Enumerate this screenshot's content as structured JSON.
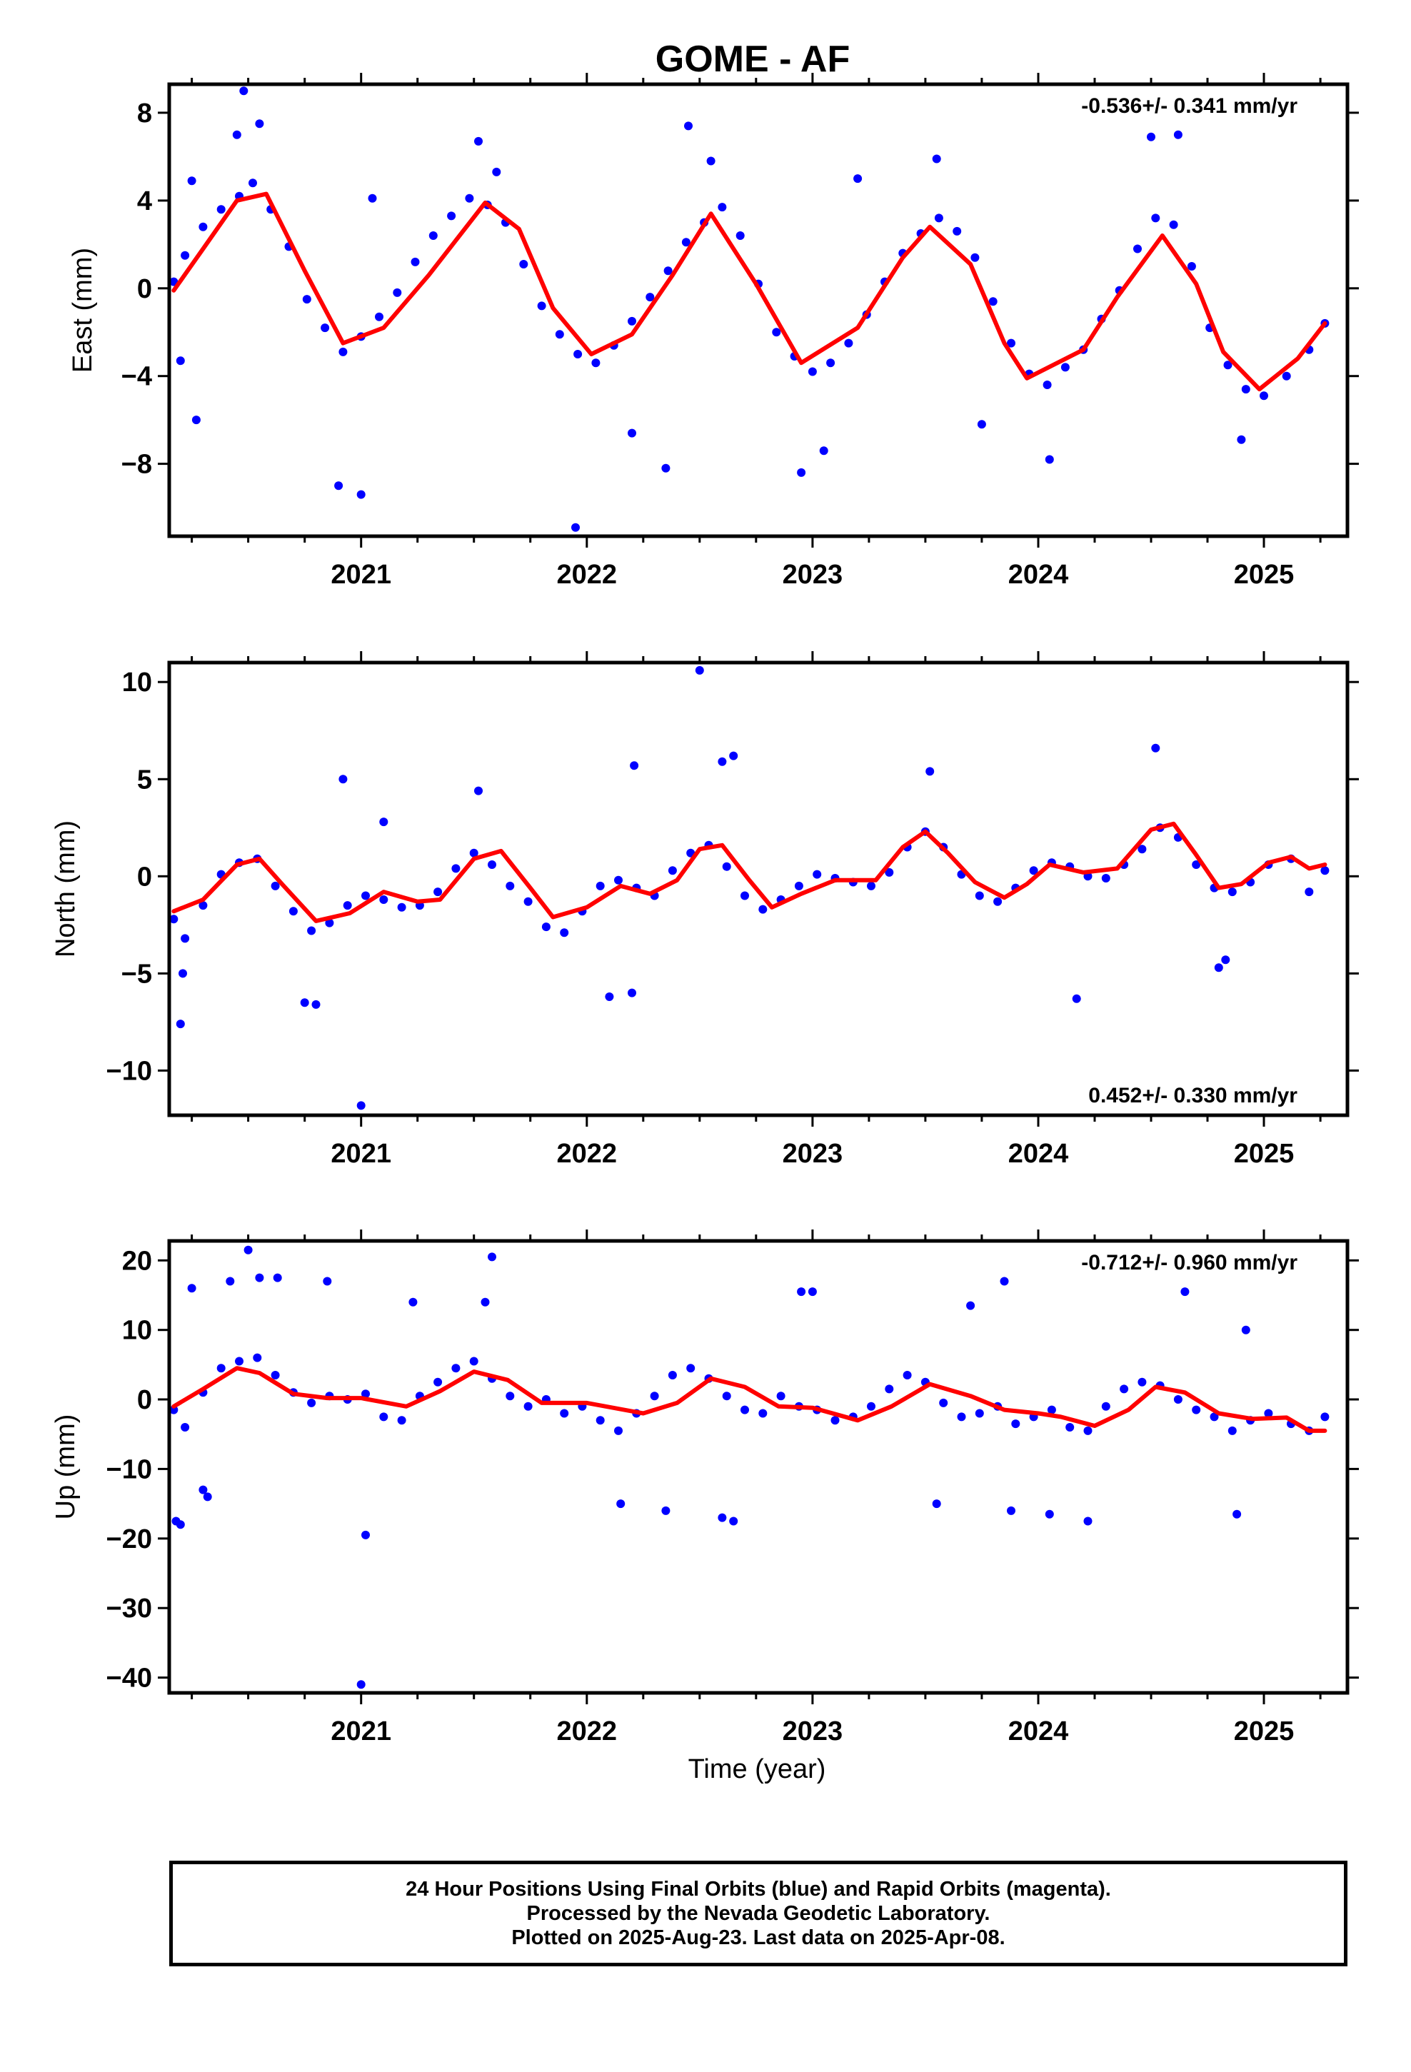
{
  "title": "GOME - AF",
  "xlabel": "Time (year)",
  "colors": {
    "points": "#0000ff",
    "fit": "#ff0000",
    "frame": "#000000"
  },
  "footer": {
    "line1": "24 Hour Positions Using Final Orbits (blue) and Rapid Orbits (magenta).",
    "line2": "Processed by the Nevada Geodetic Laboratory.",
    "line3": "Plotted on 2025-Aug-23. Last data on 2025-Apr-08."
  },
  "chart_data": [
    {
      "type": "scatter",
      "component": "east",
      "title": "GOME - AF",
      "xlabel": "",
      "ylabel": "East (mm)",
      "rate_text": "-0.536+/- 0.341 mm/yr",
      "rate_position": "top-right",
      "xlim": [
        2020.15,
        2025.37
      ],
      "ylim": [
        -11.3,
        9.3
      ],
      "x_ticks": [
        2021,
        2022,
        2023,
        2024,
        2025
      ],
      "y_ticks": [
        -8,
        -4,
        0,
        4,
        8
      ],
      "y_tick_labels": [
        "−8",
        "−4",
        "0",
        "4",
        "8"
      ],
      "grid": false,
      "series": [
        {
          "kind": "points",
          "x": [
            2020.17,
            2020.22,
            2020.3,
            2020.38,
            2020.46,
            2020.52,
            2020.6,
            2020.68,
            2020.76,
            2020.84,
            2020.92,
            2021.0,
            2021.08,
            2021.16,
            2021.24,
            2021.32,
            2021.4,
            2021.48,
            2021.56,
            2021.64,
            2021.72,
            2021.8,
            2021.88,
            2021.96,
            2022.04,
            2022.12,
            2022.2,
            2022.28,
            2022.36,
            2022.44,
            2022.52,
            2022.6,
            2022.68,
            2022.76,
            2022.84,
            2022.92,
            2023.0,
            2023.08,
            2023.16,
            2023.24,
            2023.32,
            2023.4,
            2023.48,
            2023.56,
            2023.64,
            2023.72,
            2023.8,
            2023.88,
            2023.96,
            2024.04,
            2024.12,
            2024.2,
            2024.28,
            2024.36,
            2024.44,
            2024.52,
            2024.6,
            2024.68,
            2024.76,
            2024.84,
            2024.92,
            2025.0,
            2025.1,
            2025.2,
            2025.27,
            2020.2,
            2020.27,
            2020.48,
            2020.55,
            2020.9,
            2021.0,
            2021.52,
            2021.6,
            2022.45,
            2022.55,
            2022.35,
            2022.95,
            2023.05,
            2023.55,
            2023.75,
            2024.5,
            2024.62,
            2024.9,
            2024.05,
            2023.2,
            2020.25,
            2021.95,
            2022.2,
            2020.45,
            2021.05
          ],
          "y": [
            0.3,
            1.5,
            2.8,
            3.6,
            4.2,
            4.8,
            3.6,
            1.9,
            -0.5,
            -1.8,
            -2.9,
            -2.2,
            -1.3,
            -0.2,
            1.2,
            2.4,
            3.3,
            4.1,
            3.8,
            3.0,
            1.1,
            -0.8,
            -2.1,
            -3.0,
            -3.4,
            -2.6,
            -1.5,
            -0.4,
            0.8,
            2.1,
            3.0,
            3.7,
            2.4,
            0.2,
            -2.0,
            -3.1,
            -3.8,
            -3.4,
            -2.5,
            -1.2,
            0.3,
            1.6,
            2.5,
            3.2,
            2.6,
            1.4,
            -0.6,
            -2.5,
            -3.9,
            -4.4,
            -3.6,
            -2.8,
            -1.4,
            -0.1,
            1.8,
            3.2,
            2.9,
            1.0,
            -1.8,
            -3.5,
            -4.6,
            -4.9,
            -4.0,
            -2.8,
            -1.6,
            -3.3,
            -6.0,
            9.0,
            7.5,
            -9.0,
            -9.4,
            6.7,
            5.3,
            7.4,
            5.8,
            -8.2,
            -8.4,
            -7.4,
            5.9,
            -6.2,
            6.9,
            7.0,
            -6.9,
            -7.8,
            5.0,
            4.9,
            -10.9,
            -6.6,
            7.0,
            4.1
          ]
        },
        {
          "kind": "fit",
          "x": [
            2020.17,
            2020.3,
            2020.45,
            2020.58,
            2020.75,
            2020.92,
            2021.1,
            2021.3,
            2021.55,
            2021.7,
            2021.85,
            2022.02,
            2022.2,
            2022.38,
            2022.55,
            2022.75,
            2022.95,
            2023.2,
            2023.4,
            2023.52,
            2023.7,
            2023.85,
            2023.95,
            2024.2,
            2024.35,
            2024.55,
            2024.7,
            2024.82,
            2024.98,
            2025.15,
            2025.27
          ],
          "y": [
            -0.1,
            1.8,
            4.0,
            4.3,
            0.8,
            -2.5,
            -1.8,
            0.6,
            3.9,
            2.7,
            -0.9,
            -3.0,
            -2.1,
            0.6,
            3.4,
            0.2,
            -3.4,
            -1.8,
            1.4,
            2.8,
            1.1,
            -2.5,
            -4.1,
            -2.8,
            -0.4,
            2.4,
            0.2,
            -2.9,
            -4.6,
            -3.2,
            -1.6
          ]
        }
      ]
    },
    {
      "type": "scatter",
      "component": "north",
      "xlabel": "",
      "ylabel": "North (mm)",
      "rate_text": "0.452+/- 0.330 mm/yr",
      "rate_position": "bottom-right",
      "xlim": [
        2020.15,
        2025.37
      ],
      "ylim": [
        -12.3,
        11.0
      ],
      "x_ticks": [
        2021,
        2022,
        2023,
        2024,
        2025
      ],
      "y_ticks": [
        -10,
        -5,
        0,
        5,
        10
      ],
      "y_tick_labels": [
        "−10",
        "−5",
        "0",
        "5",
        "10"
      ],
      "grid": false,
      "series": [
        {
          "kind": "points",
          "x": [
            2020.17,
            2020.22,
            2020.3,
            2020.38,
            2020.46,
            2020.54,
            2020.62,
            2020.7,
            2020.78,
            2020.86,
            2020.94,
            2021.02,
            2021.1,
            2021.18,
            2021.26,
            2021.34,
            2021.42,
            2021.5,
            2021.58,
            2021.66,
            2021.74,
            2021.82,
            2021.9,
            2021.98,
            2022.06,
            2022.14,
            2022.22,
            2022.3,
            2022.38,
            2022.46,
            2022.54,
            2022.62,
            2022.7,
            2022.78,
            2022.86,
            2022.94,
            2023.02,
            2023.1,
            2023.18,
            2023.26,
            2023.34,
            2023.42,
            2023.5,
            2023.58,
            2023.66,
            2023.74,
            2023.82,
            2023.9,
            2023.98,
            2024.06,
            2024.14,
            2024.22,
            2024.3,
            2024.38,
            2024.46,
            2024.54,
            2024.62,
            2024.7,
            2024.78,
            2024.86,
            2024.94,
            2025.02,
            2025.12,
            2025.2,
            2025.27,
            2020.2,
            2020.21,
            2020.75,
            2020.8,
            2020.92,
            2021.0,
            2021.1,
            2022.5,
            2022.65,
            2023.52,
            2024.17,
            2024.52,
            2022.21,
            2022.1,
            2021.52,
            2022.2,
            2022.6,
            2024.8,
            2024.83
          ],
          "y": [
            -2.2,
            -3.2,
            -1.5,
            0.1,
            0.7,
            0.9,
            -0.5,
            -1.8,
            -2.8,
            -2.4,
            -1.5,
            -1.0,
            -1.2,
            -1.6,
            -1.5,
            -0.8,
            0.4,
            1.2,
            0.6,
            -0.5,
            -1.3,
            -2.6,
            -2.9,
            -1.8,
            -0.5,
            -0.2,
            -0.6,
            -1.0,
            0.3,
            1.2,
            1.6,
            0.5,
            -1.0,
            -1.7,
            -1.2,
            -0.5,
            0.1,
            -0.1,
            -0.3,
            -0.5,
            0.2,
            1.5,
            2.3,
            1.5,
            0.1,
            -1.0,
            -1.3,
            -0.6,
            0.3,
            0.7,
            0.5,
            0.0,
            -0.1,
            0.6,
            1.4,
            2.5,
            2.0,
            0.6,
            -0.6,
            -0.8,
            -0.3,
            0.6,
            0.9,
            -0.8,
            0.3,
            -7.6,
            -5.0,
            -6.5,
            -6.6,
            5.0,
            -11.8,
            2.8,
            10.6,
            6.2,
            5.4,
            -6.3,
            6.6,
            5.7,
            -6.2,
            4.4,
            -6.0,
            5.9,
            -4.7,
            -4.3
          ]
        },
        {
          "kind": "fit",
          "x": [
            2020.17,
            2020.3,
            2020.45,
            2020.55,
            2020.65,
            2020.8,
            2020.95,
            2021.1,
            2021.25,
            2021.35,
            2021.5,
            2021.62,
            2021.75,
            2021.85,
            2022.0,
            2022.15,
            2022.28,
            2022.4,
            2022.5,
            2022.6,
            2022.72,
            2022.82,
            2022.95,
            2023.1,
            2023.28,
            2023.4,
            2023.5,
            2023.6,
            2023.72,
            2023.85,
            2023.95,
            2024.05,
            2024.2,
            2024.35,
            2024.5,
            2024.6,
            2024.7,
            2024.8,
            2024.9,
            2025.02,
            2025.12,
            2025.2,
            2025.27
          ],
          "y": [
            -1.8,
            -1.2,
            0.6,
            0.9,
            -0.4,
            -2.3,
            -1.9,
            -0.8,
            -1.3,
            -1.2,
            0.9,
            1.3,
            -0.6,
            -2.1,
            -1.6,
            -0.5,
            -0.9,
            -0.2,
            1.4,
            1.6,
            -0.2,
            -1.6,
            -0.9,
            -0.2,
            -0.2,
            1.5,
            2.3,
            1.2,
            -0.3,
            -1.1,
            -0.4,
            0.6,
            0.2,
            0.4,
            2.4,
            2.7,
            1.1,
            -0.6,
            -0.4,
            0.7,
            1.0,
            0.4,
            0.6
          ]
        }
      ]
    },
    {
      "type": "scatter",
      "component": "up",
      "xlabel": "Time (year)",
      "ylabel": "Up (mm)",
      "rate_text": "-0.712+/- 0.960 mm/yr",
      "rate_position": "top-right",
      "xlim": [
        2020.15,
        2025.37
      ],
      "ylim": [
        -42.2,
        22.8
      ],
      "x_ticks": [
        2021,
        2022,
        2023,
        2024,
        2025
      ],
      "y_ticks": [
        -40,
        -30,
        -20,
        -10,
        0,
        10,
        20
      ],
      "y_tick_labels": [
        "−40",
        "−30",
        "−20",
        "−10",
        "0",
        "10",
        "20"
      ],
      "grid": false,
      "series": [
        {
          "kind": "points",
          "x": [
            2020.17,
            2020.22,
            2020.3,
            2020.38,
            2020.46,
            2020.54,
            2020.62,
            2020.7,
            2020.78,
            2020.86,
            2020.94,
            2021.02,
            2021.1,
            2021.18,
            2021.26,
            2021.34,
            2021.42,
            2021.5,
            2021.58,
            2021.66,
            2021.74,
            2021.82,
            2021.9,
            2021.98,
            2022.06,
            2022.14,
            2022.22,
            2022.3,
            2022.38,
            2022.46,
            2022.54,
            2022.62,
            2022.7,
            2022.78,
            2022.86,
            2022.94,
            2023.02,
            2023.1,
            2023.18,
            2023.26,
            2023.34,
            2023.42,
            2023.5,
            2023.58,
            2023.66,
            2023.74,
            2023.82,
            2023.9,
            2023.98,
            2024.06,
            2024.14,
            2024.22,
            2024.3,
            2024.38,
            2024.46,
            2024.54,
            2024.62,
            2024.7,
            2024.78,
            2024.86,
            2024.94,
            2025.02,
            2025.12,
            2025.2,
            2025.27,
            2020.18,
            2020.2,
            2020.25,
            2020.3,
            2020.42,
            2020.5,
            2020.55,
            2020.63,
            2020.85,
            2021.0,
            2021.02,
            2021.55,
            2021.58,
            2022.35,
            2022.6,
            2022.65,
            2022.95,
            2023.0,
            2023.55,
            2023.7,
            2023.85,
            2023.88,
            2024.05,
            2024.22,
            2024.65,
            2024.88,
            2024.92,
            2022.15,
            2020.32,
            2021.23
          ],
          "y": [
            -1.5,
            -4.0,
            1.0,
            4.5,
            5.5,
            6.0,
            3.5,
            1.0,
            -0.5,
            0.5,
            0.0,
            0.8,
            -2.5,
            -3.0,
            0.5,
            2.5,
            4.5,
            5.5,
            3.0,
            0.5,
            -1.0,
            0.0,
            -2.0,
            -1.0,
            -3.0,
            -4.5,
            -2.0,
            0.5,
            3.5,
            4.5,
            3.0,
            0.5,
            -1.5,
            -2.0,
            0.5,
            -1.0,
            -1.5,
            -3.0,
            -2.5,
            -1.0,
            1.5,
            3.5,
            2.5,
            -0.5,
            -2.5,
            -2.0,
            -1.0,
            -3.5,
            -2.5,
            -1.5,
            -4.0,
            -4.5,
            -1.0,
            1.5,
            2.5,
            2.0,
            0.0,
            -1.5,
            -2.5,
            -4.5,
            -3.0,
            -2.0,
            -3.5,
            -4.5,
            -2.5,
            -17.5,
            -18.0,
            16.0,
            -13.0,
            17.0,
            21.5,
            17.5,
            17.5,
            17.0,
            -41.0,
            -19.5,
            14.0,
            20.5,
            -16.0,
            -17.0,
            -17.5,
            15.5,
            15.5,
            -15.0,
            13.5,
            17.0,
            -16.0,
            -16.5,
            -17.5,
            15.5,
            -16.5,
            10.0,
            -15.0,
            -14.0,
            14.0
          ]
        },
        {
          "kind": "fit",
          "x": [
            2020.17,
            2020.3,
            2020.45,
            2020.55,
            2020.7,
            2020.85,
            2021.0,
            2021.2,
            2021.35,
            2021.5,
            2021.65,
            2021.8,
            2022.0,
            2022.25,
            2022.4,
            2022.55,
            2022.7,
            2022.85,
            2023.0,
            2023.2,
            2023.35,
            2023.52,
            2023.7,
            2023.85,
            2024.0,
            2024.1,
            2024.25,
            2024.4,
            2024.52,
            2024.65,
            2024.8,
            2024.95,
            2025.1,
            2025.2,
            2025.27
          ],
          "y": [
            -1.0,
            1.5,
            4.5,
            3.8,
            0.8,
            0.2,
            0.2,
            -1.0,
            1.2,
            4.0,
            2.8,
            -0.5,
            -0.5,
            -2.0,
            -0.5,
            3.0,
            1.8,
            -1.0,
            -1.2,
            -3.0,
            -1.0,
            2.2,
            0.5,
            -1.5,
            -2.0,
            -2.5,
            -3.8,
            -1.5,
            1.8,
            1.0,
            -2.0,
            -2.8,
            -2.6,
            -4.5,
            -4.5
          ]
        }
      ]
    }
  ]
}
